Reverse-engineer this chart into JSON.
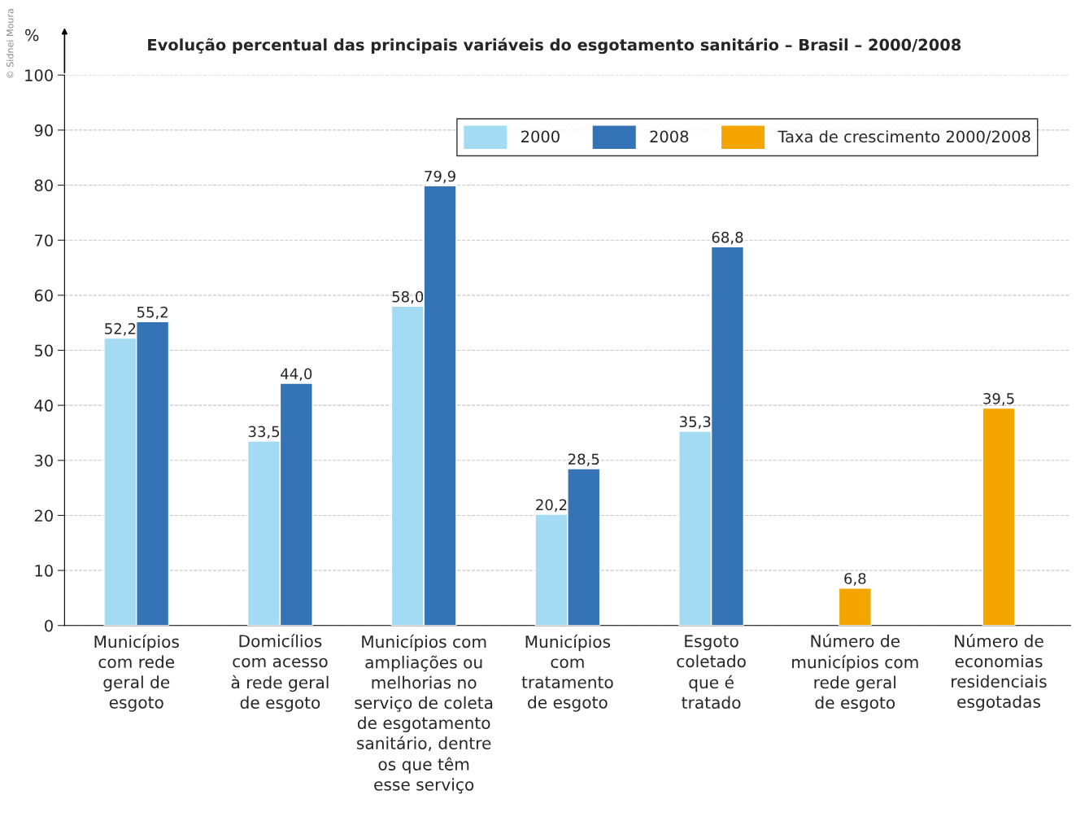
{
  "chart_data": {
    "type": "bar",
    "title": "Evolução percentual das principais variáveis do esgotamento sanitário – Brasil – 2000/2008",
    "ylabel": "%",
    "categories": [
      "Municípios\ncom rede\ngeral de\nesgoto",
      "Domicílios\ncom acesso\nà rede geral\nde esgoto",
      "Municípios com\nampliações ou\nmelhorias no\nserviço de coleta\nde esgotamento\nsanitário, dentre\nos que têm\nesse serviço",
      "Municípios\ncom\ntratamento\nde esgoto",
      "Esgoto\ncoletado\nque é\ntratado",
      "Número de\nmunicípios com\nrede geral\nde esgoto",
      "Número de\neconomias\nresidenciais\nesgotadas"
    ],
    "series": [
      {
        "name": "2000",
        "color": "#a3dbf3",
        "values": [
          52.2,
          33.5,
          58.0,
          20.2,
          35.3,
          null,
          null
        ],
        "value_labels": [
          "52,2",
          "33,5",
          "58,0",
          "20,2",
          "35,3",
          null,
          null
        ]
      },
      {
        "name": "2008",
        "color": "#3473b5",
        "values": [
          55.2,
          44.0,
          79.9,
          28.5,
          68.8,
          null,
          null
        ],
        "value_labels": [
          "55,2",
          "44,0",
          "79,9",
          "28,5",
          "68,8",
          null,
          null
        ]
      },
      {
        "name": "Taxa de crescimento 2000/2008",
        "color": "#f5a500",
        "values": [
          null,
          null,
          null,
          null,
          null,
          6.8,
          39.5
        ],
        "value_labels": [
          null,
          null,
          null,
          null,
          null,
          "6,8",
          "39,5"
        ]
      }
    ],
    "ylim": [
      0,
      100
    ],
    "yticks": [
      0,
      10,
      20,
      30,
      40,
      50,
      60,
      70,
      80,
      90,
      100
    ],
    "grid": "y",
    "legend": "top right",
    "annotations": [
      "© Sidnei Moura"
    ]
  }
}
